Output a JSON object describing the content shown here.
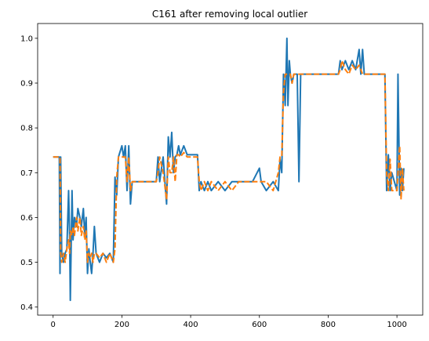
{
  "chart_data": {
    "type": "line",
    "title": "C161 after removing local outlier",
    "x": [
      0,
      18,
      20,
      22,
      25,
      30,
      35,
      40,
      45,
      48,
      50,
      55,
      58,
      62,
      68,
      72,
      78,
      82,
      88,
      92,
      96,
      100,
      104,
      108,
      112,
      116,
      120,
      125,
      135,
      145,
      155,
      165,
      175,
      180,
      185,
      190,
      200,
      205,
      210,
      215,
      220,
      225,
      230,
      240,
      300,
      305,
      310,
      320,
      330,
      335,
      340,
      345,
      350,
      355,
      360,
      365,
      370,
      380,
      390,
      420,
      425,
      430,
      440,
      450,
      460,
      480,
      500,
      520,
      540,
      580,
      600,
      605,
      620,
      640,
      655,
      660,
      665,
      670,
      675,
      680,
      683,
      687,
      690,
      695,
      700,
      710,
      715,
      720,
      830,
      835,
      840,
      850,
      860,
      870,
      880,
      890,
      895,
      900,
      905,
      965,
      970,
      975,
      980,
      985,
      1000,
      1003,
      1008,
      1012,
      1016,
      1020
    ],
    "series": [
      {
        "color": "#1f77b4",
        "dashed": false,
        "values": [
          0.735,
          0.735,
          0.475,
          0.735,
          0.52,
          0.5,
          0.52,
          0.53,
          0.66,
          0.56,
          0.415,
          0.66,
          0.55,
          0.6,
          0.58,
          0.62,
          0.6,
          0.58,
          0.62,
          0.56,
          0.6,
          0.475,
          0.53,
          0.5,
          0.475,
          0.52,
          0.58,
          0.52,
          0.5,
          0.52,
          0.51,
          0.52,
          0.5,
          0.69,
          0.65,
          0.735,
          0.76,
          0.735,
          0.76,
          0.66,
          0.76,
          0.63,
          0.68,
          0.68,
          0.68,
          0.735,
          0.68,
          0.735,
          0.63,
          0.78,
          0.735,
          0.79,
          0.7,
          0.735,
          0.74,
          0.76,
          0.74,
          0.76,
          0.74,
          0.74,
          0.66,
          0.68,
          0.66,
          0.68,
          0.66,
          0.68,
          0.66,
          0.68,
          0.68,
          0.68,
          0.71,
          0.68,
          0.66,
          0.68,
          0.66,
          0.73,
          0.7,
          0.92,
          0.85,
          1.0,
          0.85,
          0.95,
          0.92,
          0.9,
          0.92,
          0.92,
          0.68,
          0.92,
          0.92,
          0.95,
          0.93,
          0.95,
          0.93,
          0.95,
          0.93,
          0.975,
          0.92,
          0.975,
          0.92,
          0.92,
          0.66,
          0.74,
          0.66,
          0.7,
          0.66,
          0.92,
          0.65,
          0.71,
          0.66,
          0.71
        ]
      },
      {
        "color": "#ff7f0e",
        "dashed": true,
        "values": [
          0.735,
          0.735,
          0.735,
          0.52,
          0.5,
          0.52,
          0.5,
          0.53,
          0.55,
          0.52,
          0.57,
          0.56,
          0.58,
          0.56,
          0.6,
          0.57,
          0.6,
          0.56,
          0.58,
          0.55,
          0.57,
          0.5,
          0.52,
          0.51,
          0.52,
          0.5,
          0.52,
          0.52,
          0.51,
          0.52,
          0.5,
          0.52,
          0.5,
          0.53,
          0.69,
          0.735,
          0.735,
          0.735,
          0.735,
          0.68,
          0.735,
          0.66,
          0.68,
          0.68,
          0.68,
          0.7,
          0.735,
          0.7,
          0.64,
          0.735,
          0.7,
          0.7,
          0.735,
          0.68,
          0.74,
          0.74,
          0.735,
          0.745,
          0.735,
          0.735,
          0.68,
          0.66,
          0.68,
          0.66,
          0.68,
          0.66,
          0.68,
          0.66,
          0.68,
          0.68,
          0.68,
          0.68,
          0.68,
          0.66,
          0.7,
          0.735,
          0.735,
          0.88,
          0.92,
          0.92,
          0.92,
          0.92,
          0.92,
          0.9,
          0.92,
          0.92,
          0.92,
          0.92,
          0.92,
          0.93,
          0.95,
          0.93,
          0.92,
          0.94,
          0.93,
          0.94,
          0.93,
          0.92,
          0.92,
          0.92,
          0.7,
          0.66,
          0.73,
          0.66,
          0.66,
          0.7,
          0.76,
          0.64,
          0.71,
          0.66
        ]
      }
    ],
    "xlim": [
      -45,
      1075
    ],
    "ylim": [
      0.382,
      1.033
    ],
    "xticks": [
      0,
      200,
      400,
      600,
      800,
      1000
    ],
    "yticks": [
      0.4,
      0.5,
      0.6,
      0.7,
      0.8,
      0.9,
      {
        "value": 1,
        "label": "1.0"
      }
    ],
    "grid": false
  }
}
